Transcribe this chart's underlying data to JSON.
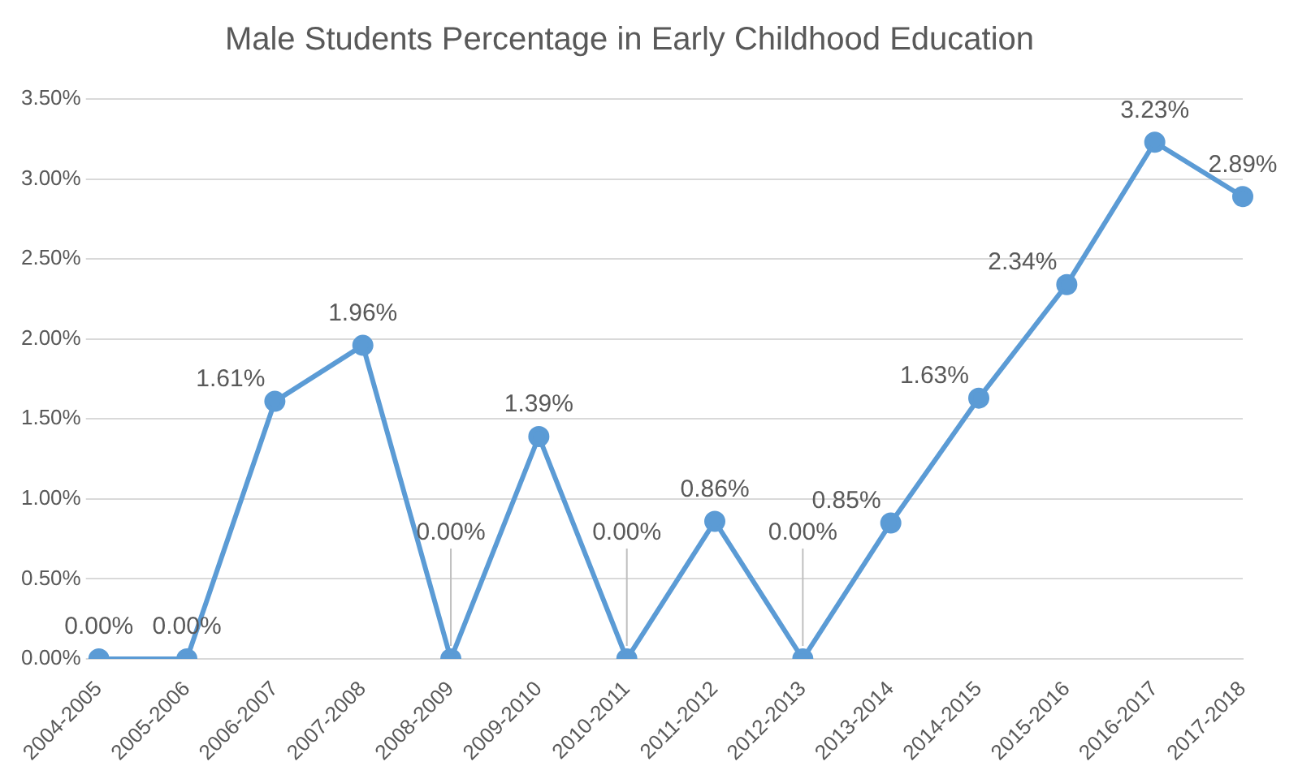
{
  "chart_data": {
    "type": "line",
    "title": "Male Students Percentage in Early Childhood Education",
    "categories": [
      "2004-2005",
      "2005-2006",
      "2006-2007",
      "2007-2008",
      "2008-2009",
      "2009-2010",
      "2010-2011",
      "2011-2012",
      "2012-2013",
      "2013-2014",
      "2014-2015",
      "2015-2016",
      "2016-2017",
      "2017-2018"
    ],
    "series": [
      {
        "color": "#5b9bd5",
        "values": [
          0,
          0,
          1.61,
          1.96,
          0,
          1.39,
          0,
          0.86,
          0,
          0.85,
          1.63,
          2.34,
          3.23,
          2.89
        ],
        "value_labels": [
          "0.00%",
          "0.00%",
          "1.61%",
          "1.96%",
          "0.00%",
          "1.39%",
          "0.00%",
          "0.86%",
          "0.00%",
          "0.85%",
          "1.63%",
          "2.34%",
          "3.23%",
          "2.89%"
        ]
      }
    ],
    "ylim": [
      0,
      3.5
    ],
    "yticks": [
      {
        "value": 0,
        "label": "0.00%"
      },
      {
        "value": 0.5,
        "label": "0.50%"
      },
      {
        "value": 1,
        "label": "1.00%"
      },
      {
        "value": 1.5,
        "label": "1.50%"
      },
      {
        "value": 2,
        "label": "2.00%"
      },
      {
        "value": 2.5,
        "label": "2.50%"
      },
      {
        "value": 3,
        "label": "3.00%"
      },
      {
        "value": 3.5,
        "label": "3.50%"
      }
    ],
    "grid": "y",
    "marker": "circle",
    "line_style": "solid"
  }
}
